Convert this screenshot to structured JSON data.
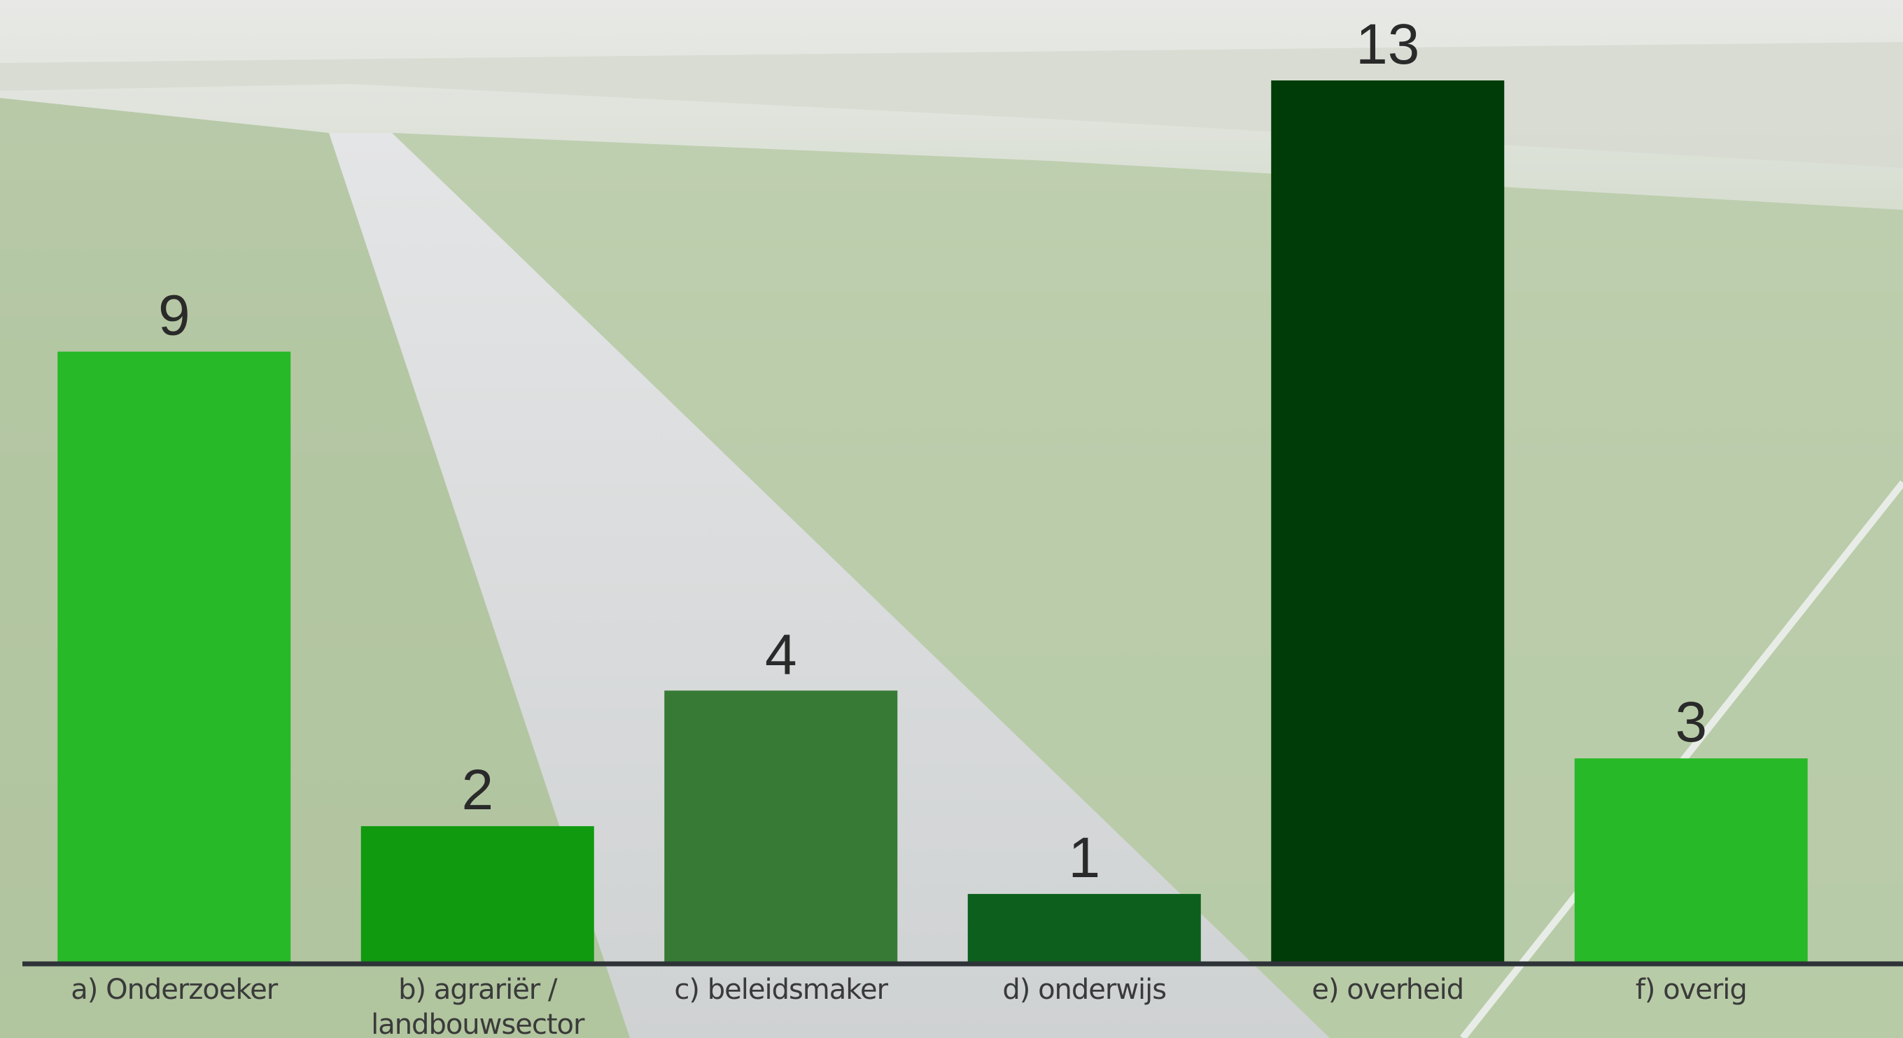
{
  "chart_data": {
    "type": "bar",
    "categories": [
      [
        "a) Onderzoeker"
      ],
      [
        "b) agrariër /",
        "landbouwsector"
      ],
      [
        "c) beleidsmaker"
      ],
      [
        "d) onderwijs"
      ],
      [
        "e) overheid"
      ],
      [
        "f) overig"
      ]
    ],
    "values": [
      9,
      2,
      4,
      1,
      13,
      3
    ],
    "colors": [
      "#27b927",
      "#0f9a0f",
      "#367a36",
      "#0d5f1d",
      "#003c07",
      "#27b927"
    ],
    "ylim": [
      0,
      13
    ],
    "grid": false,
    "legend": "none"
  },
  "background": {
    "sky": "#e6e8e4",
    "grass": "#b7c9a8",
    "water": "#d9dbdc"
  }
}
